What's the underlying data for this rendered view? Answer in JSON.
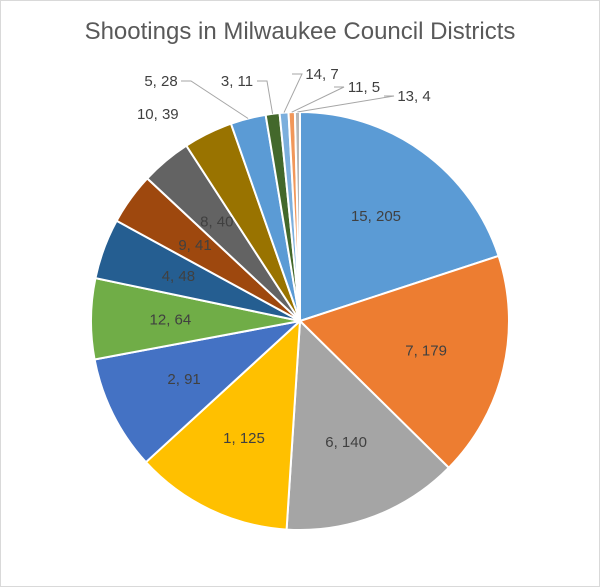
{
  "chart_data": {
    "type": "pie",
    "title": "Shootings in Milwaukee Council Districts",
    "start_angle_deg": 90,
    "direction": "clockwise",
    "slices": [
      {
        "label": "15, 205",
        "district": "15",
        "value": 205,
        "color": "#5b9bd5",
        "label_pos": "inside"
      },
      {
        "label": "7, 179",
        "district": "7",
        "value": 179,
        "color": "#ed7d31",
        "label_pos": "inside"
      },
      {
        "label": "6, 140",
        "district": "6",
        "value": 140,
        "color": "#a5a5a5",
        "label_pos": "inside"
      },
      {
        "label": "1, 125",
        "district": "1",
        "value": 125,
        "color": "#ffc000",
        "label_pos": "inside"
      },
      {
        "label": "2, 91",
        "district": "2",
        "value": 91,
        "color": "#4472c4",
        "label_pos": "inside"
      },
      {
        "label": "12, 64",
        "district": "12",
        "value": 64,
        "color": "#70ad47",
        "label_pos": "inside"
      },
      {
        "label": "4, 48",
        "district": "4",
        "value": 48,
        "color": "#255e91",
        "label_pos": "inside"
      },
      {
        "label": "9, 41",
        "district": "9",
        "value": 41,
        "color": "#9e480e",
        "label_pos": "inside"
      },
      {
        "label": "8, 40",
        "district": "8",
        "value": 40,
        "color": "#636363",
        "label_pos": "inside"
      },
      {
        "label": "10, 39",
        "district": "10",
        "value": 39,
        "color": "#997300",
        "label_pos": "outside"
      },
      {
        "label": "5, 28",
        "district": "5",
        "value": 28,
        "color": "#5b9bd5",
        "label_pos": "callout"
      },
      {
        "label": "3, 11",
        "district": "3",
        "value": 11,
        "color": "#43682b",
        "label_pos": "callout"
      },
      {
        "label": "14, 7",
        "district": "14",
        "value": 7,
        "color": "#7cafdd",
        "label_pos": "callout"
      },
      {
        "label": "11, 5",
        "district": "11",
        "value": 5,
        "color": "#f1975a",
        "label_pos": "callout"
      },
      {
        "label": "13, 4",
        "district": "13",
        "value": 4,
        "color": "#b7b7b7",
        "label_pos": "callout"
      }
    ]
  }
}
